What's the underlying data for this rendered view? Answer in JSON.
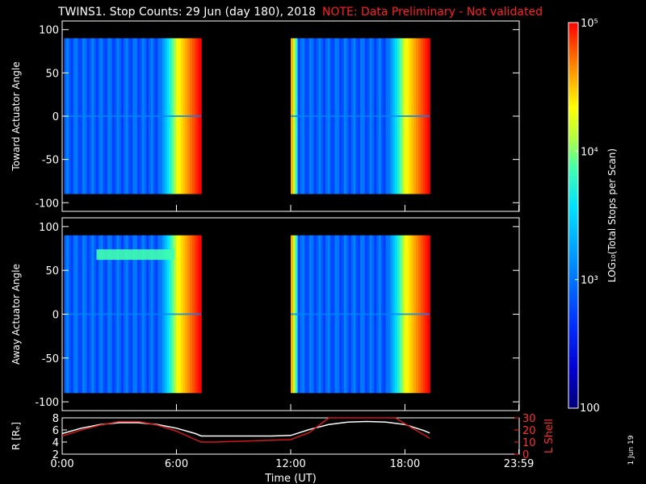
{
  "title": {
    "main": "TWINS1. Stop Counts: 29 Jun (day 180), 2018",
    "note": "NOTE: Data Preliminary - Not validated"
  },
  "colors": {
    "background": "#000000",
    "axes": "#ffffff",
    "note": "#ff2020",
    "r_line": "#ffffff",
    "lshell_line": "#d01818"
  },
  "date_stamp": "1 Jun 19",
  "chart_data": [
    {
      "type": "heatmap",
      "ylabel": "Toward Actuator Angle",
      "ylim": [
        -110,
        110
      ],
      "yticks": [
        -100,
        -50,
        0,
        50,
        100
      ],
      "xlim": [
        0,
        24
      ],
      "data_y_range": [
        -90,
        90
      ],
      "color_scale": "log",
      "data_intervals": [
        {
          "start": 0.1,
          "end": 7.3
        },
        {
          "start": 12.0,
          "end": 19.3
        }
      ]
    },
    {
      "type": "heatmap",
      "ylabel": "Away Actuator Angle",
      "ylim": [
        -110,
        110
      ],
      "yticks": [
        -100,
        -50,
        0,
        50,
        100
      ],
      "xlim": [
        0,
        24
      ],
      "data_y_range": [
        -90,
        90
      ],
      "color_scale": "log",
      "data_intervals": [
        {
          "start": 0.1,
          "end": 7.3
        },
        {
          "start": 12.0,
          "end": 19.3
        }
      ]
    },
    {
      "type": "line",
      "xlabel": "Time (UT)",
      "xlim": [
        0,
        24
      ],
      "xtick_labels": [
        "0:00",
        "6:00",
        "12:00",
        "18:00",
        "23:59"
      ],
      "xtick_values": [
        0,
        6,
        12,
        18,
        23.98
      ],
      "left_ylabel": "R [Rₑ]",
      "left_ylim": [
        2,
        8
      ],
      "left_yticks": [
        2,
        4,
        6,
        8
      ],
      "right_ylabel": "L Shell",
      "right_ylim": [
        0,
        30
      ],
      "right_yticks": [
        0,
        10,
        20,
        30
      ],
      "series": [
        {
          "name": "R [Rₑ]",
          "axis": "left",
          "x": [
            0.0,
            1.0,
            2.0,
            3.0,
            4.0,
            5.0,
            6.0,
            7.0,
            7.3,
            8.0,
            9.0,
            10.0,
            11.0,
            12.0,
            13.0,
            14.0,
            15.0,
            16.0,
            17.0,
            18.0,
            19.0,
            19.3
          ],
          "y": [
            5.4,
            6.3,
            6.9,
            7.2,
            7.2,
            6.9,
            6.3,
            5.4,
            5.0,
            5.0,
            5.0,
            5.0,
            5.0,
            5.1,
            6.1,
            6.9,
            7.3,
            7.4,
            7.3,
            6.9,
            5.9,
            5.5
          ]
        },
        {
          "name": "L Shell",
          "axis": "right",
          "x": [
            0.0,
            1.0,
            2.0,
            3.0,
            4.0,
            5.0,
            6.0,
            7.0,
            7.3,
            8.0,
            9.0,
            10.0,
            11.0,
            12.0,
            13.0,
            14.0,
            17.5,
            18.0,
            19.0,
            19.3
          ],
          "y": [
            15,
            20,
            24,
            27,
            27,
            24,
            19,
            12,
            10,
            10,
            10.5,
            11,
            11.5,
            12,
            18,
            30,
            30,
            25,
            16,
            13
          ]
        }
      ]
    }
  ],
  "colorbar": {
    "label": "LOG₁₀(Total Stops per Scan)",
    "min_label": "100",
    "tick_labels": [
      "10⁵",
      "10⁴",
      "10³"
    ],
    "tick_values": [
      100000,
      10000,
      1000
    ],
    "range": [
      100,
      100000
    ],
    "scale": "log"
  }
}
